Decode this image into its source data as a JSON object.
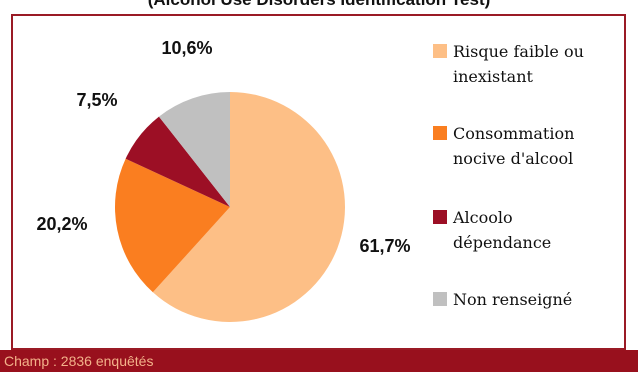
{
  "chart_data": {
    "type": "pie",
    "title": "(Alcohol Use Disorders Identification Test)",
    "categories": [
      "Risque faible ou inexistant",
      "Consommation nocive d'alcool",
      "Alcoolo dépendance",
      "Non renseigné"
    ],
    "values": [
      61.7,
      20.2,
      7.5,
      10.6
    ],
    "value_labels": [
      "61,7%",
      "20,2%",
      "7,5%",
      "10,6%"
    ],
    "legend_lines": [
      [
        "Risque faible ou",
        "inexistant"
      ],
      [
        "Consommation",
        "nocive d'alcool"
      ],
      [
        "Alcoolo",
        "dépendance"
      ],
      [
        "Non renseigné"
      ]
    ],
    "colors": [
      "#fdbf86",
      "#fa7e20",
      "#9c0f25",
      "#c0c0c0"
    ],
    "legend_position": "right"
  },
  "footer": {
    "text": "Champ : 2836 enquêtés"
  }
}
